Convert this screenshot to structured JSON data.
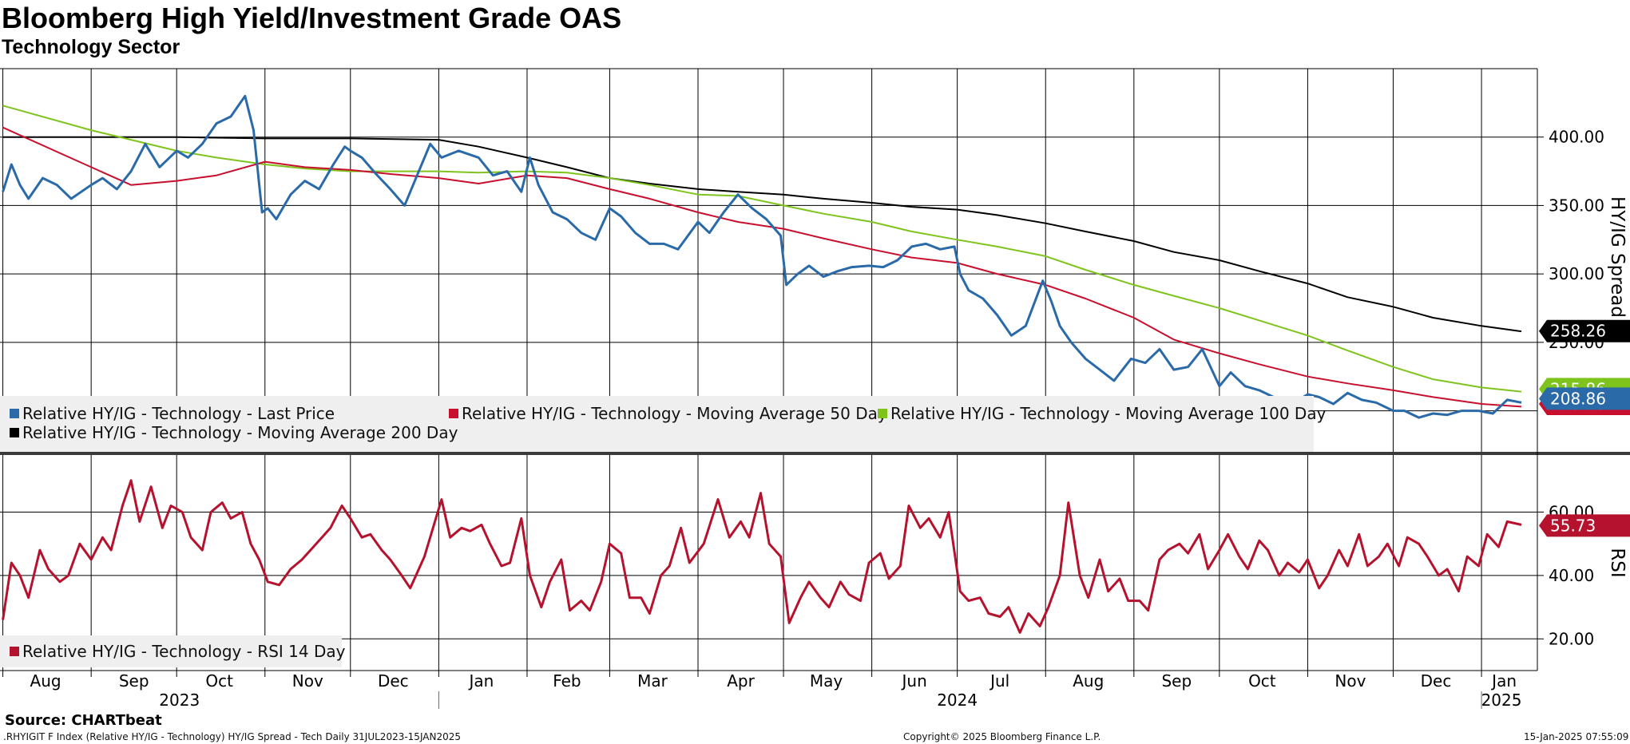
{
  "title": "Bloomberg High Yield/Investment Grade OAS",
  "subtitle": "Technology Sector",
  "source": "Source: CHARTbeat",
  "footer_left": ".RHYIGIT F Index (Relative HY/IG - Technology) HY/IG Spread - Tech  Daily 31JUL2023-15JAN2025",
  "footer_center": "Copyright© 2025 Bloomberg Finance L.P.",
  "footer_right": "15-Jan-2025 07:55:09",
  "colors": {
    "last_price": "#2a6aa8",
    "ma50": "#c8102e",
    "ma100": "#7fc41c",
    "ma200": "#000000",
    "rsi": "#b5122d",
    "grid": "#000000"
  },
  "legend_top": [
    {
      "label": "Relative HY/IG - Technology - Last Price",
      "color": "#2a6aa8"
    },
    {
      "label": "Relative HY/IG - Technology - Moving Average 50 Day",
      "color": "#c8102e"
    },
    {
      "label": "Relative HY/IG - Technology - Moving Average 100 Day",
      "color": "#7fc41c"
    },
    {
      "label": "Relative HY/IG - Technology - Moving Average 200 Day",
      "color": "#000000"
    }
  ],
  "legend_bottom": [
    {
      "label": "Relative HY/IG - Technology - RSI 14 Day",
      "color": "#b5122d"
    }
  ],
  "chart_data": [
    {
      "type": "line",
      "title": "Bloomberg High Yield/Investment Grade OAS",
      "ylabel": "HY/IG Spread",
      "ylim": [
        170,
        450
      ],
      "yticks": [
        "250.00",
        "300.00",
        "350.00",
        "400.00"
      ],
      "x_labels": [
        "Aug",
        "Sep",
        "Oct",
        "Nov",
        "Dec",
        "Jan",
        "Feb",
        "Mar",
        "Apr",
        "May",
        "Jun",
        "Jul",
        "Aug",
        "Sep",
        "Oct",
        "Nov",
        "Dec",
        "Jan"
      ],
      "years": [
        "2023",
        "2024",
        "2025"
      ],
      "x_range": [
        "2023-07-31",
        "2025-01-15"
      ],
      "last_values": {
        "ma200": "258.26",
        "last_price": "208.86",
        "ma100": "215.86",
        "ma50": "205.00"
      },
      "series": [
        {
          "name": "Relative HY/IG - Technology - Last Price",
          "x": [
            "2023-08-01",
            "2023-08-04",
            "2023-08-07",
            "2023-08-10",
            "2023-08-15",
            "2023-08-20",
            "2023-08-25",
            "2023-09-01",
            "2023-09-05",
            "2023-09-10",
            "2023-09-15",
            "2023-09-20",
            "2023-09-25",
            "2023-10-01",
            "2023-10-05",
            "2023-10-10",
            "2023-10-15",
            "2023-10-20",
            "2023-10-25",
            "2023-10-28",
            "2023-10-31",
            "2023-11-02",
            "2023-11-05",
            "2023-11-10",
            "2023-11-15",
            "2023-11-20",
            "2023-11-25",
            "2023-11-29",
            "2023-12-01",
            "2023-12-05",
            "2023-12-10",
            "2023-12-15",
            "2023-12-20",
            "2023-12-25",
            "2023-12-29",
            "2024-01-02",
            "2024-01-08",
            "2024-01-15",
            "2024-01-20",
            "2024-01-25",
            "2024-01-30",
            "2024-02-02",
            "2024-02-05",
            "2024-02-10",
            "2024-02-15",
            "2024-02-20",
            "2024-02-25",
            "2024-03-01",
            "2024-03-05",
            "2024-03-10",
            "2024-03-15",
            "2024-03-20",
            "2024-03-25",
            "2024-04-01",
            "2024-04-05",
            "2024-04-10",
            "2024-04-15",
            "2024-04-20",
            "2024-04-25",
            "2024-04-30",
            "2024-05-02",
            "2024-05-06",
            "2024-05-10",
            "2024-05-15",
            "2024-05-20",
            "2024-05-25",
            "2024-05-31",
            "2024-06-05",
            "2024-06-10",
            "2024-06-15",
            "2024-06-20",
            "2024-06-25",
            "2024-06-30",
            "2024-07-02",
            "2024-07-05",
            "2024-07-10",
            "2024-07-15",
            "2024-07-20",
            "2024-07-25",
            "2024-07-31",
            "2024-08-03",
            "2024-08-06",
            "2024-08-10",
            "2024-08-15",
            "2024-08-20",
            "2024-08-25",
            "2024-08-31",
            "2024-09-05",
            "2024-09-10",
            "2024-09-15",
            "2024-09-20",
            "2024-09-25",
            "2024-10-01",
            "2024-10-05",
            "2024-10-10",
            "2024-10-15",
            "2024-10-20",
            "2024-10-25",
            "2024-11-01",
            "2024-11-05",
            "2024-11-10",
            "2024-11-15",
            "2024-11-20",
            "2024-11-25",
            "2024-12-01",
            "2024-12-05",
            "2024-12-10",
            "2024-12-15",
            "2024-12-20",
            "2024-12-25",
            "2024-12-31",
            "2025-01-05",
            "2025-01-10",
            "2025-01-15"
          ],
          "y": [
            360,
            380,
            365,
            355,
            370,
            365,
            355,
            365,
            370,
            362,
            375,
            395,
            378,
            390,
            385,
            395,
            410,
            415,
            430,
            405,
            345,
            348,
            340,
            358,
            368,
            362,
            380,
            393,
            390,
            385,
            373,
            362,
            350,
            375,
            395,
            385,
            390,
            385,
            372,
            375,
            360,
            385,
            365,
            345,
            340,
            330,
            325,
            348,
            342,
            330,
            322,
            322,
            318,
            338,
            330,
            345,
            358,
            348,
            340,
            328,
            292,
            300,
            306,
            298,
            302,
            305,
            306,
            305,
            310,
            320,
            322,
            318,
            320,
            300,
            288,
            282,
            270,
            255,
            262,
            295,
            280,
            262,
            250,
            238,
            230,
            222,
            238,
            235,
            245,
            230,
            232,
            245,
            218,
            228,
            218,
            215,
            210,
            203,
            212,
            210,
            205,
            213,
            208,
            206,
            200,
            200,
            195,
            198,
            197,
            200,
            200,
            198,
            208,
            206
          ]
        },
        {
          "name": "Relative HY/IG - Technology - Moving Average 50 Day",
          "x": [
            "2023-08-01",
            "2023-09-01",
            "2023-09-15",
            "2023-10-01",
            "2023-10-15",
            "2023-11-01",
            "2023-11-15",
            "2023-12-01",
            "2023-12-15",
            "2024-01-01",
            "2024-01-15",
            "2024-02-01",
            "2024-02-15",
            "2024-03-01",
            "2024-03-15",
            "2024-04-01",
            "2024-04-15",
            "2024-05-01",
            "2024-05-15",
            "2024-06-01",
            "2024-06-15",
            "2024-07-01",
            "2024-07-15",
            "2024-08-01",
            "2024-08-15",
            "2024-09-01",
            "2024-09-15",
            "2024-10-01",
            "2024-10-15",
            "2024-11-01",
            "2024-11-15",
            "2024-12-01",
            "2024-12-15",
            "2025-01-01",
            "2025-01-15"
          ],
          "y": [
            407,
            378,
            365,
            368,
            372,
            382,
            378,
            376,
            373,
            370,
            366,
            372,
            370,
            362,
            355,
            345,
            338,
            333,
            326,
            318,
            312,
            308,
            300,
            292,
            282,
            268,
            252,
            242,
            234,
            225,
            220,
            215,
            210,
            205,
            203
          ]
        },
        {
          "name": "Relative HY/IG - Technology - Moving Average 100 Day",
          "x": [
            "2023-08-01",
            "2023-09-01",
            "2023-09-15",
            "2023-10-01",
            "2023-10-15",
            "2023-11-01",
            "2023-11-15",
            "2023-12-01",
            "2023-12-15",
            "2024-01-01",
            "2024-01-15",
            "2024-02-01",
            "2024-02-15",
            "2024-03-01",
            "2024-03-15",
            "2024-04-01",
            "2024-04-15",
            "2024-05-01",
            "2024-05-15",
            "2024-06-01",
            "2024-06-15",
            "2024-07-01",
            "2024-07-15",
            "2024-08-01",
            "2024-08-15",
            "2024-09-01",
            "2024-09-15",
            "2024-10-01",
            "2024-10-15",
            "2024-11-01",
            "2024-11-15",
            "2024-12-01",
            "2024-12-15",
            "2025-01-01",
            "2025-01-15"
          ],
          "y": [
            423,
            405,
            398,
            390,
            385,
            380,
            377,
            375,
            375,
            375,
            374,
            375,
            374,
            370,
            365,
            358,
            357,
            350,
            344,
            338,
            331,
            325,
            320,
            313,
            303,
            292,
            284,
            275,
            266,
            255,
            244,
            232,
            223,
            217,
            214
          ]
        },
        {
          "name": "Relative HY/IG - Technology - Moving Average 200 Day",
          "x": [
            "2023-08-01",
            "2023-09-01",
            "2023-10-01",
            "2023-11-01",
            "2023-12-01",
            "2024-01-01",
            "2024-01-15",
            "2024-02-01",
            "2024-02-15",
            "2024-03-01",
            "2024-03-15",
            "2024-04-01",
            "2024-04-15",
            "2024-05-01",
            "2024-05-15",
            "2024-06-01",
            "2024-06-15",
            "2024-07-01",
            "2024-07-15",
            "2024-08-01",
            "2024-08-15",
            "2024-09-01",
            "2024-09-15",
            "2024-10-01",
            "2024-10-15",
            "2024-11-01",
            "2024-11-15",
            "2024-12-01",
            "2024-12-15",
            "2025-01-01",
            "2025-01-15"
          ],
          "y": [
            400,
            400,
            400,
            399,
            399,
            398,
            393,
            385,
            378,
            370,
            366,
            362,
            360,
            358,
            355,
            352,
            349,
            347,
            343,
            337,
            331,
            324,
            316,
            310,
            302,
            293,
            283,
            276,
            268,
            262,
            258
          ]
        }
      ]
    },
    {
      "type": "line",
      "ylabel": "RSI",
      "ylim": [
        10,
        78
      ],
      "yticks": [
        "20.00",
        "40.00",
        "60.00"
      ],
      "last_value": "55.73",
      "series": [
        {
          "name": "Relative HY/IG - Technology - RSI 14 Day",
          "x": [
            "2023-08-01",
            "2023-08-04",
            "2023-08-07",
            "2023-08-10",
            "2023-08-14",
            "2023-08-17",
            "2023-08-21",
            "2023-08-24",
            "2023-08-28",
            "2023-09-01",
            "2023-09-05",
            "2023-09-08",
            "2023-09-12",
            "2023-09-15",
            "2023-09-18",
            "2023-09-22",
            "2023-09-26",
            "2023-09-29",
            "2023-10-03",
            "2023-10-06",
            "2023-10-10",
            "2023-10-13",
            "2023-10-17",
            "2023-10-20",
            "2023-10-24",
            "2023-10-27",
            "2023-10-30",
            "2023-11-02",
            "2023-11-06",
            "2023-11-10",
            "2023-11-14",
            "2023-11-17",
            "2023-11-21",
            "2023-11-24",
            "2023-11-28",
            "2023-12-01",
            "2023-12-05",
            "2023-12-08",
            "2023-12-12",
            "2023-12-15",
            "2023-12-19",
            "2023-12-22",
            "2023-12-27",
            "2024-01-02",
            "2024-01-05",
            "2024-01-09",
            "2024-01-12",
            "2024-01-16",
            "2024-01-19",
            "2024-01-23",
            "2024-01-26",
            "2024-01-30",
            "2024-02-02",
            "2024-02-06",
            "2024-02-09",
            "2024-02-13",
            "2024-02-16",
            "2024-02-20",
            "2024-02-23",
            "2024-02-27",
            "2024-03-01",
            "2024-03-05",
            "2024-03-08",
            "2024-03-12",
            "2024-03-15",
            "2024-03-19",
            "2024-03-22",
            "2024-03-26",
            "2024-03-29",
            "2024-04-03",
            "2024-04-08",
            "2024-04-12",
            "2024-04-16",
            "2024-04-19",
            "2024-04-23",
            "2024-04-26",
            "2024-04-30",
            "2024-05-03",
            "2024-05-07",
            "2024-05-10",
            "2024-05-14",
            "2024-05-17",
            "2024-05-21",
            "2024-05-24",
            "2024-05-28",
            "2024-05-31",
            "2024-06-04",
            "2024-06-07",
            "2024-06-11",
            "2024-06-14",
            "2024-06-18",
            "2024-06-21",
            "2024-06-25",
            "2024-06-28",
            "2024-07-02",
            "2024-07-05",
            "2024-07-09",
            "2024-07-12",
            "2024-07-16",
            "2024-07-19",
            "2024-07-23",
            "2024-07-26",
            "2024-07-30",
            "2024-08-02",
            "2024-08-06",
            "2024-08-09",
            "2024-08-13",
            "2024-08-16",
            "2024-08-20",
            "2024-08-23",
            "2024-08-27",
            "2024-08-30",
            "2024-09-03",
            "2024-09-06",
            "2024-09-10",
            "2024-09-13",
            "2024-09-17",
            "2024-09-20",
            "2024-09-24",
            "2024-09-27",
            "2024-10-01",
            "2024-10-04",
            "2024-10-08",
            "2024-10-11",
            "2024-10-15",
            "2024-10-18",
            "2024-10-22",
            "2024-10-25",
            "2024-10-29",
            "2024-11-01",
            "2024-11-05",
            "2024-11-08",
            "2024-11-12",
            "2024-11-15",
            "2024-11-19",
            "2024-11-22",
            "2024-11-26",
            "2024-11-29",
            "2024-12-03",
            "2024-12-06",
            "2024-12-10",
            "2024-12-13",
            "2024-12-17",
            "2024-12-20",
            "2024-12-24",
            "2024-12-27",
            "2024-12-31",
            "2025-01-03",
            "2025-01-07",
            "2025-01-10",
            "2025-01-15"
          ],
          "y": [
            26,
            44,
            40,
            33,
            48,
            42,
            38,
            40,
            50,
            45,
            52,
            48,
            62,
            70,
            57,
            68,
            55,
            62,
            60,
            52,
            48,
            60,
            63,
            58,
            60,
            50,
            45,
            38,
            37,
            42,
            45,
            48,
            52,
            55,
            62,
            58,
            52,
            53,
            48,
            45,
            40,
            36,
            46,
            64,
            52,
            55,
            54,
            56,
            50,
            43,
            44,
            58,
            40,
            30,
            38,
            45,
            29,
            32,
            29,
            38,
            50,
            47,
            33,
            33,
            28,
            40,
            43,
            55,
            44,
            50,
            64,
            52,
            57,
            52,
            66,
            50,
            46,
            25,
            33,
            38,
            33,
            30,
            38,
            34,
            32,
            44,
            47,
            39,
            43,
            62,
            55,
            58,
            52,
            60,
            35,
            32,
            33,
            28,
            27,
            30,
            22,
            28,
            24,
            30,
            40,
            63,
            40,
            33,
            45,
            35,
            39,
            32,
            32,
            29,
            45,
            48,
            50,
            47,
            53,
            42,
            48,
            53,
            46,
            42,
            51,
            48,
            40,
            44,
            41,
            45,
            36,
            40,
            48,
            43,
            53,
            43,
            46,
            50,
            43,
            52,
            50,
            46,
            40,
            42,
            35,
            46,
            43,
            53,
            49,
            57,
            56
          ]
        }
      ]
    }
  ]
}
